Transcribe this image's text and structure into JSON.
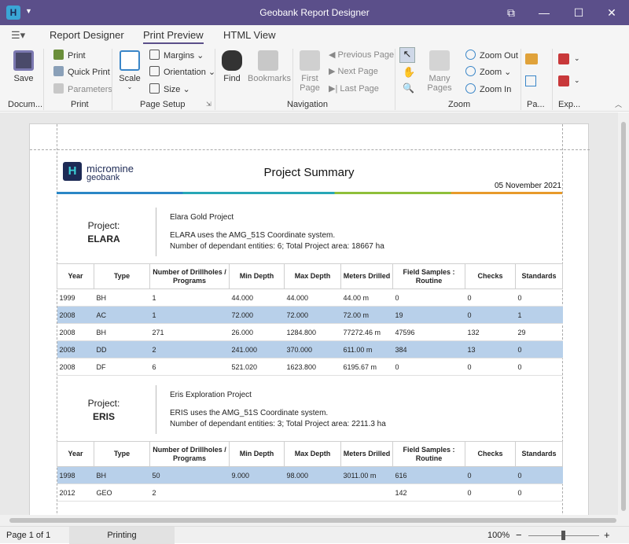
{
  "window": {
    "title": "Geobank Report Designer",
    "app_icon": "H"
  },
  "tabs": [
    "Report Designer",
    "Print Preview",
    "HTML View"
  ],
  "ribbon": {
    "save": "Save",
    "print": "Print",
    "quick_print": "Quick Print",
    "parameters": "Parameters",
    "scale": "Scale",
    "margins": "Margins",
    "orientation": "Orientation",
    "size": "Size",
    "find": "Find",
    "bookmarks": "Bookmarks",
    "first_page": "First",
    "first_page2": "Page",
    "previous_page": "Previous Page",
    "next_page": "Next Page",
    "last_page": "Last Page",
    "many_pages": "Many Pages",
    "zoom_out": "Zoom Out",
    "zoom": "Zoom",
    "zoom_in": "Zoom In",
    "groups": {
      "document": "Docum...",
      "print": "Print",
      "page_setup": "Page Setup",
      "navigation": "Navigation",
      "zoom": "Zoom",
      "page": "Pa...",
      "export": "Exp..."
    }
  },
  "report": {
    "logo_top": "micromine",
    "logo_bottom": "geobank",
    "logo_mark": "H",
    "title": "Project Summary",
    "date": "05 November 2021",
    "columns": [
      "Year",
      "Type",
      "Number of Drillholes / Programs",
      "Min Depth",
      "Max Depth",
      "Meters Drilled",
      "Field Samples : Routine",
      "Checks",
      "Standards"
    ],
    "projects": [
      {
        "label": "Project:",
        "code": "ELARA",
        "name": "Elara Gold Project",
        "desc": "ELARA uses the AMG_51S Coordinate system.",
        "entities": "Number of dependant entities: 6; Total Project area: 18667 ha",
        "rows": [
          [
            "1999",
            "BH",
            "1",
            "44.000",
            "44.000",
            "44.00 m",
            "0",
            "0",
            "0"
          ],
          [
            "2008",
            "AC",
            "1",
            "72.000",
            "72.000",
            "72.00 m",
            "19",
            "0",
            "1"
          ],
          [
            "2008",
            "BH",
            "271",
            "26.000",
            "1284.800",
            "77272.46 m",
            "47596",
            "132",
            "29"
          ],
          [
            "2008",
            "DD",
            "2",
            "241.000",
            "370.000",
            "611.00 m",
            "384",
            "13",
            "0"
          ],
          [
            "2008",
            "DF",
            "6",
            "521.020",
            "1623.800",
            "6195.67 m",
            "0",
            "0",
            "0"
          ]
        ]
      },
      {
        "label": "Project:",
        "code": "ERIS",
        "name": "Eris Exploration Project",
        "desc": "ERIS uses the AMG_51S Coordinate system.",
        "entities": "Number of dependant entities: 3; Total Project area: 2211.3 ha",
        "rows": [
          [
            "1998",
            "BH",
            "50",
            "9.000",
            "98.000",
            "3011.00 m",
            "616",
            "0",
            "0"
          ],
          [
            "2012",
            "GEO",
            "2",
            "",
            "",
            "",
            "142",
            "0",
            "0"
          ]
        ]
      }
    ]
  },
  "status": {
    "page": "Page 1 of 1",
    "state": "Printing",
    "zoom": "100%"
  }
}
